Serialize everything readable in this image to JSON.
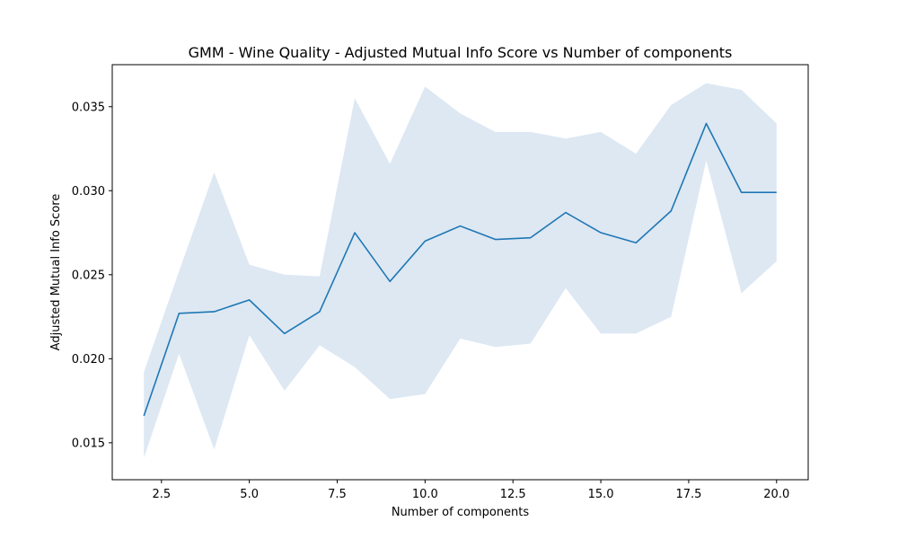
{
  "chart_data": {
    "type": "line",
    "title": "GMM - Wine Quality - Adjusted Mutual Info Score vs Number of components",
    "xlabel": "Number of components",
    "ylabel": "Adjusted Mutual Info Score",
    "xlim": [
      1.1,
      20.9
    ],
    "ylim": [
      0.0128,
      0.0375
    ],
    "xticks": [
      2.5,
      5.0,
      7.5,
      10.0,
      12.5,
      15.0,
      17.5,
      20.0
    ],
    "xtick_labels": [
      "2.5",
      "5.0",
      "7.5",
      "10.0",
      "12.5",
      "15.0",
      "17.5",
      "20.0"
    ],
    "yticks": [
      0.015,
      0.02,
      0.025,
      0.03,
      0.035
    ],
    "ytick_labels": [
      "0.015",
      "0.020",
      "0.025",
      "0.030",
      "0.035"
    ],
    "grid": false,
    "series": [
      {
        "x": [
          2,
          3,
          4,
          5,
          6,
          7,
          8,
          9,
          10,
          11,
          12,
          13,
          14,
          15,
          16,
          17,
          18,
          19,
          20
        ],
        "values": [
          0.0166,
          0.0227,
          0.0228,
          0.0235,
          0.0215,
          0.0228,
          0.0275,
          0.0246,
          0.027,
          0.0279,
          0.0271,
          0.0272,
          0.0287,
          0.0275,
          0.0269,
          0.0288,
          0.034,
          0.0299,
          0.0299
        ],
        "upper": [
          0.0192,
          0.0252,
          0.0311,
          0.0256,
          0.025,
          0.0249,
          0.0355,
          0.0316,
          0.0362,
          0.0346,
          0.0335,
          0.0335,
          0.0331,
          0.0335,
          0.0322,
          0.0351,
          0.0364,
          0.036,
          0.034
        ],
        "lower": [
          0.0141,
          0.0203,
          0.0146,
          0.0214,
          0.0181,
          0.0208,
          0.0195,
          0.0176,
          0.0179,
          0.0212,
          0.0207,
          0.0209,
          0.0242,
          0.0215,
          0.0215,
          0.0225,
          0.0318,
          0.0239,
          0.0258
        ],
        "color": "#1f77b4",
        "band_color": "#dde8f3"
      }
    ]
  }
}
